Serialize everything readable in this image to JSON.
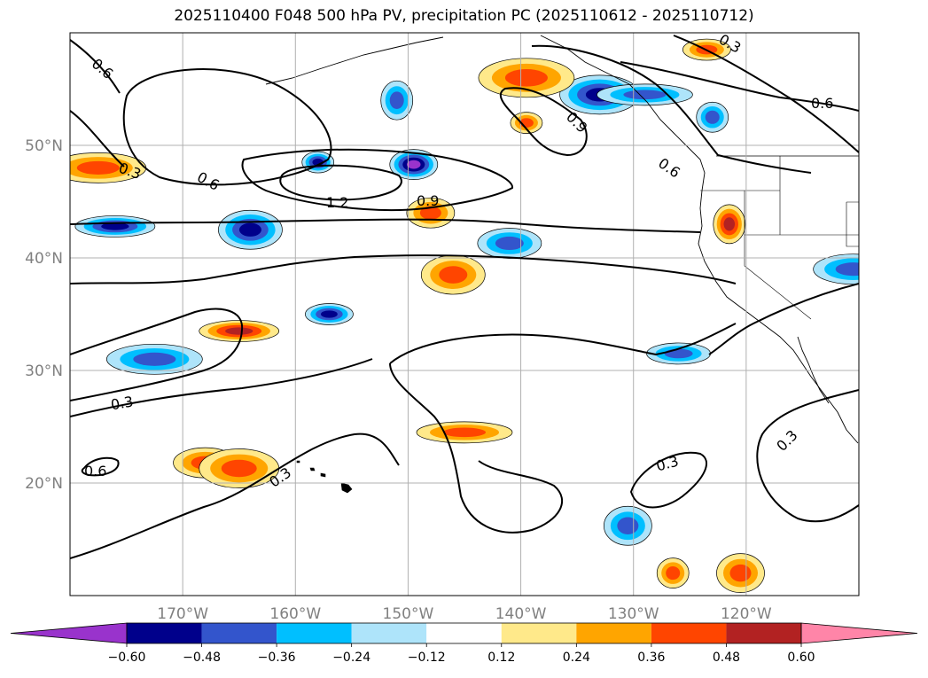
{
  "title": "2025110400 F048 500 hPa PV, precipitation PC (2025110612 - 2025110712)",
  "chart_data": {
    "type": "heatmap",
    "title": "2025110400 F048 500 hPa PV, precipitation PC (2025110612 - 2025110712)",
    "xlim": [
      -180,
      -110
    ],
    "ylim": [
      10,
      60
    ],
    "grid": true,
    "x_ticks": [
      {
        "value": -170,
        "label": "170°W"
      },
      {
        "value": -160,
        "label": "160°W"
      },
      {
        "value": -150,
        "label": "150°W"
      },
      {
        "value": -140,
        "label": "140°W"
      },
      {
        "value": -130,
        "label": "130°W"
      },
      {
        "value": -120,
        "label": "120°W"
      }
    ],
    "y_ticks": [
      {
        "value": 20,
        "label": "20°N"
      },
      {
        "value": 30,
        "label": "30°N"
      },
      {
        "value": 40,
        "label": "40°N"
      },
      {
        "value": 50,
        "label": "50°N"
      }
    ],
    "colorbar": {
      "levels": [
        -0.72,
        -0.6,
        -0.48,
        -0.36,
        -0.24,
        -0.12,
        0.12,
        0.24,
        0.36,
        0.48,
        0.6,
        0.72
      ],
      "tick_labels": [
        "−0.60",
        "−0.48",
        "−0.36",
        "−0.24",
        "−0.12",
        "0.12",
        "0.24",
        "0.36",
        "0.48",
        "0.60"
      ],
      "tick_values": [
        -0.6,
        -0.48,
        -0.36,
        -0.24,
        -0.12,
        0.12,
        0.24,
        0.36,
        0.48,
        0.6
      ],
      "colors": [
        "#9933cc",
        "#00008b",
        "#3355cc",
        "#00bfff",
        "#aee4fa",
        "#ffffff",
        "#ffe98a",
        "#ffa500",
        "#ff4500",
        "#b22222",
        "#ff85a8"
      ],
      "extend": "both"
    },
    "precip_blobs": [
      {
        "lon": -158.0,
        "lat": 48.5,
        "level": -0.48
      },
      {
        "lon": -149.5,
        "lat": 48.3,
        "level": -0.6
      },
      {
        "lon": -164.0,
        "lat": 42.5,
        "level": -0.48
      },
      {
        "lon": -176.0,
        "lat": 42.8,
        "level": -0.48
      },
      {
        "lon": -172.5,
        "lat": 31.0,
        "level": -0.36
      },
      {
        "lon": -151.0,
        "lat": 54.0,
        "level": -0.36
      },
      {
        "lon": -157.0,
        "lat": 35.0,
        "level": -0.48
      },
      {
        "lon": -141.0,
        "lat": 41.3,
        "level": -0.36
      },
      {
        "lon": -133.0,
        "lat": 54.5,
        "level": -0.48
      },
      {
        "lon": -129.0,
        "lat": 54.5,
        "level": -0.36
      },
      {
        "lon": -123.0,
        "lat": 52.5,
        "level": -0.36
      },
      {
        "lon": -130.5,
        "lat": 16.2,
        "level": -0.36
      },
      {
        "lon": -126.0,
        "lat": 31.5,
        "level": -0.36
      },
      {
        "lon": -110.5,
        "lat": 39.0,
        "level": -0.36
      },
      {
        "lon": -139.5,
        "lat": 56.0,
        "level": 0.36
      },
      {
        "lon": -139.5,
        "lat": 52.0,
        "level": 0.36
      },
      {
        "lon": -148.0,
        "lat": 44.0,
        "level": 0.36
      },
      {
        "lon": -146.0,
        "lat": 38.5,
        "level": 0.36
      },
      {
        "lon": -165.0,
        "lat": 33.5,
        "level": 0.48
      },
      {
        "lon": -177.5,
        "lat": 48.0,
        "level": 0.36
      },
      {
        "lon": -121.5,
        "lat": 43.0,
        "level": 0.48
      },
      {
        "lon": -123.5,
        "lat": 58.5,
        "level": 0.36
      },
      {
        "lon": -168.0,
        "lat": 21.8,
        "level": 0.36
      },
      {
        "lon": -165.0,
        "lat": 21.3,
        "level": 0.36
      },
      {
        "lon": -145.0,
        "lat": 24.5,
        "level": 0.36
      },
      {
        "lon": -126.5,
        "lat": 12.0,
        "level": 0.36
      },
      {
        "lon": -120.5,
        "lat": 12.0,
        "level": 0.36
      }
    ],
    "pv_contours": [
      {
        "level": 0.3,
        "label": "0.3"
      },
      {
        "level": 0.6,
        "label": "0.6"
      },
      {
        "level": 0.9,
        "label": "0.9"
      },
      {
        "level": 1.2,
        "label": "1.2"
      }
    ]
  }
}
